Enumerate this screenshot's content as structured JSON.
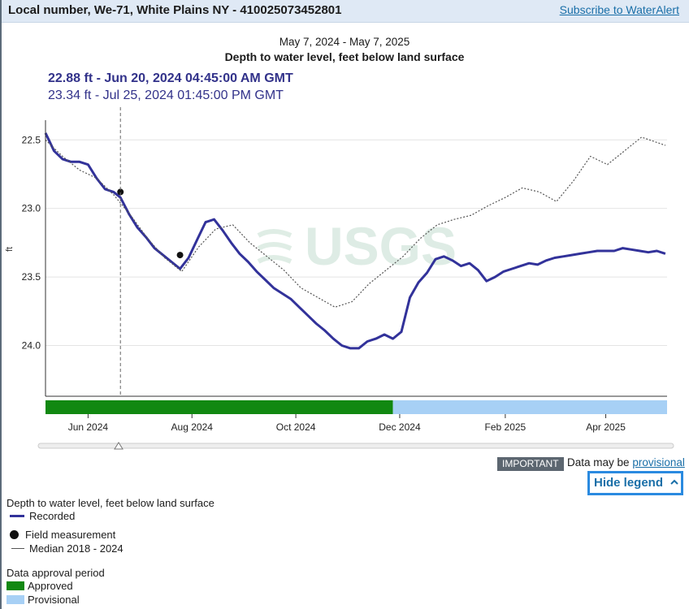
{
  "header": {
    "title": "Local number, We-71, White Plains NY - 410025073452801",
    "subscribe_link": "Subscribe to WaterAlert"
  },
  "chart": {
    "date_range": "May 7, 2024 - May 7, 2025",
    "title": "Depth to water level, feet below land surface",
    "tooltip_primary": "22.88 ft - Jun 20, 2024 04:45:00 AM GMT",
    "tooltip_secondary": "23.34 ft - Jul 25, 2024 01:45:00 PM GMT",
    "watermark": "USGS"
  },
  "chart_data": {
    "type": "line",
    "title": "Depth to water level, feet below land surface",
    "ylabel": "ft",
    "y_inverted": true,
    "ylim": [
      22.38,
      24.37
    ],
    "yticks": [
      22.5,
      23.0,
      23.5,
      24.0
    ],
    "ytick_labels": [
      "22.5",
      "23.0",
      "23.5",
      "24.0"
    ],
    "xlim": [
      "2024-05-07",
      "2025-05-07"
    ],
    "xticks": [
      "2024-06-01",
      "2024-08-01",
      "2024-10-01",
      "2024-12-01",
      "2025-02-01",
      "2025-04-01"
    ],
    "xtick_labels": [
      "Jun 2024",
      "Aug 2024",
      "Oct 2024",
      "Dec 2024",
      "Feb 2025",
      "Apr 2025"
    ],
    "cursor_date": "2024-06-20",
    "grid": true,
    "series": [
      {
        "name": "Recorded",
        "color": "#32329a",
        "x": [
          "2024-05-07",
          "2024-05-12",
          "2024-05-17",
          "2024-05-22",
          "2024-05-27",
          "2024-06-01",
          "2024-06-06",
          "2024-06-11",
          "2024-06-16",
          "2024-06-20",
          "2024-06-25",
          "2024-06-30",
          "2024-07-05",
          "2024-07-10",
          "2024-07-15",
          "2024-07-20",
          "2024-07-25",
          "2024-07-30",
          "2024-08-04",
          "2024-08-09",
          "2024-08-14",
          "2024-08-19",
          "2024-08-24",
          "2024-08-29",
          "2024-09-03",
          "2024-09-08",
          "2024-09-13",
          "2024-09-18",
          "2024-09-23",
          "2024-09-28",
          "2024-10-03",
          "2024-10-08",
          "2024-10-13",
          "2024-10-18",
          "2024-10-23",
          "2024-10-28",
          "2024-11-02",
          "2024-11-07",
          "2024-11-12",
          "2024-11-17",
          "2024-11-22",
          "2024-11-27",
          "2024-12-02",
          "2024-12-07",
          "2024-12-12",
          "2024-12-17",
          "2024-12-22",
          "2024-12-27",
          "2025-01-01",
          "2025-01-06",
          "2025-01-11",
          "2025-01-16",
          "2025-01-21",
          "2025-01-26",
          "2025-01-31",
          "2025-02-05",
          "2025-02-10",
          "2025-02-15",
          "2025-02-20",
          "2025-02-25",
          "2025-03-02",
          "2025-03-07",
          "2025-03-12",
          "2025-03-17",
          "2025-03-22",
          "2025-03-27",
          "2025-04-01",
          "2025-04-06",
          "2025-04-11",
          "2025-04-16",
          "2025-04-21",
          "2025-04-26",
          "2025-05-01",
          "2025-05-06"
        ],
        "values": [
          22.45,
          22.58,
          22.64,
          22.66,
          22.66,
          22.68,
          22.78,
          22.86,
          22.88,
          22.92,
          23.04,
          23.14,
          23.21,
          23.29,
          23.34,
          23.39,
          23.44,
          23.36,
          23.23,
          23.1,
          23.08,
          23.16,
          23.25,
          23.33,
          23.39,
          23.46,
          23.52,
          23.58,
          23.62,
          23.66,
          23.72,
          23.78,
          23.84,
          23.89,
          23.95,
          24.0,
          24.02,
          24.02,
          23.97,
          23.95,
          23.92,
          23.95,
          23.9,
          23.65,
          23.54,
          23.47,
          23.37,
          23.35,
          23.38,
          23.42,
          23.4,
          23.45,
          23.53,
          23.5,
          23.46,
          23.44,
          23.42,
          23.4,
          23.41,
          23.38,
          23.36,
          23.35,
          23.34,
          23.33,
          23.32,
          23.31,
          23.31,
          23.31,
          23.29,
          23.3,
          23.31,
          23.32,
          23.31,
          23.33
        ]
      },
      {
        "name": "Median 2018 - 2024",
        "color": "#555555",
        "x": [
          "2024-05-07",
          "2024-05-17",
          "2024-05-27",
          "2024-06-06",
          "2024-06-16",
          "2024-06-26",
          "2024-07-06",
          "2024-07-16",
          "2024-07-26",
          "2024-08-05",
          "2024-08-15",
          "2024-08-25",
          "2024-09-04",
          "2024-09-14",
          "2024-09-24",
          "2024-10-04",
          "2024-10-14",
          "2024-10-24",
          "2024-11-03",
          "2024-11-13",
          "2024-11-23",
          "2024-12-03",
          "2024-12-13",
          "2024-12-23",
          "2025-01-02",
          "2025-01-12",
          "2025-01-22",
          "2025-02-01",
          "2025-02-11",
          "2025-02-21",
          "2025-03-03",
          "2025-03-13",
          "2025-03-23",
          "2025-04-02",
          "2025-04-12",
          "2025-04-22",
          "2025-05-06"
        ],
        "values": [
          22.5,
          22.62,
          22.72,
          22.78,
          22.9,
          23.05,
          23.22,
          23.36,
          23.46,
          23.28,
          23.15,
          23.12,
          23.25,
          23.35,
          23.45,
          23.58,
          23.65,
          23.72,
          23.68,
          23.55,
          23.45,
          23.35,
          23.22,
          23.12,
          23.08,
          23.05,
          22.98,
          22.92,
          22.85,
          22.88,
          22.95,
          22.8,
          22.62,
          22.68,
          22.58,
          22.48,
          22.54
        ]
      }
    ],
    "field_measurements": [
      {
        "x": "2024-06-20",
        "y": 22.88
      },
      {
        "x": "2024-07-25",
        "y": 23.34
      }
    ],
    "approval_periods": [
      {
        "name": "Approved",
        "start": "2024-05-07",
        "end": "2024-11-27",
        "color": "#118811"
      },
      {
        "name": "Provisional",
        "start": "2024-11-27",
        "end": "2025-05-07",
        "color": "#a7d0f5"
      }
    ]
  },
  "notice": {
    "badge": "IMPORTANT",
    "text": "Data may be",
    "link": "provisional"
  },
  "legend_toggle": {
    "label": "Hide legend",
    "icon": "chevron-up-icon"
  },
  "legend": {
    "heading": "Depth to water level, feet below land surface",
    "recorded": "Recorded",
    "field_measurement": "Field measurement",
    "median": "Median 2018 - 2024",
    "approval_heading": "Data approval period",
    "approved": "Approved",
    "provisional": "Provisional"
  }
}
